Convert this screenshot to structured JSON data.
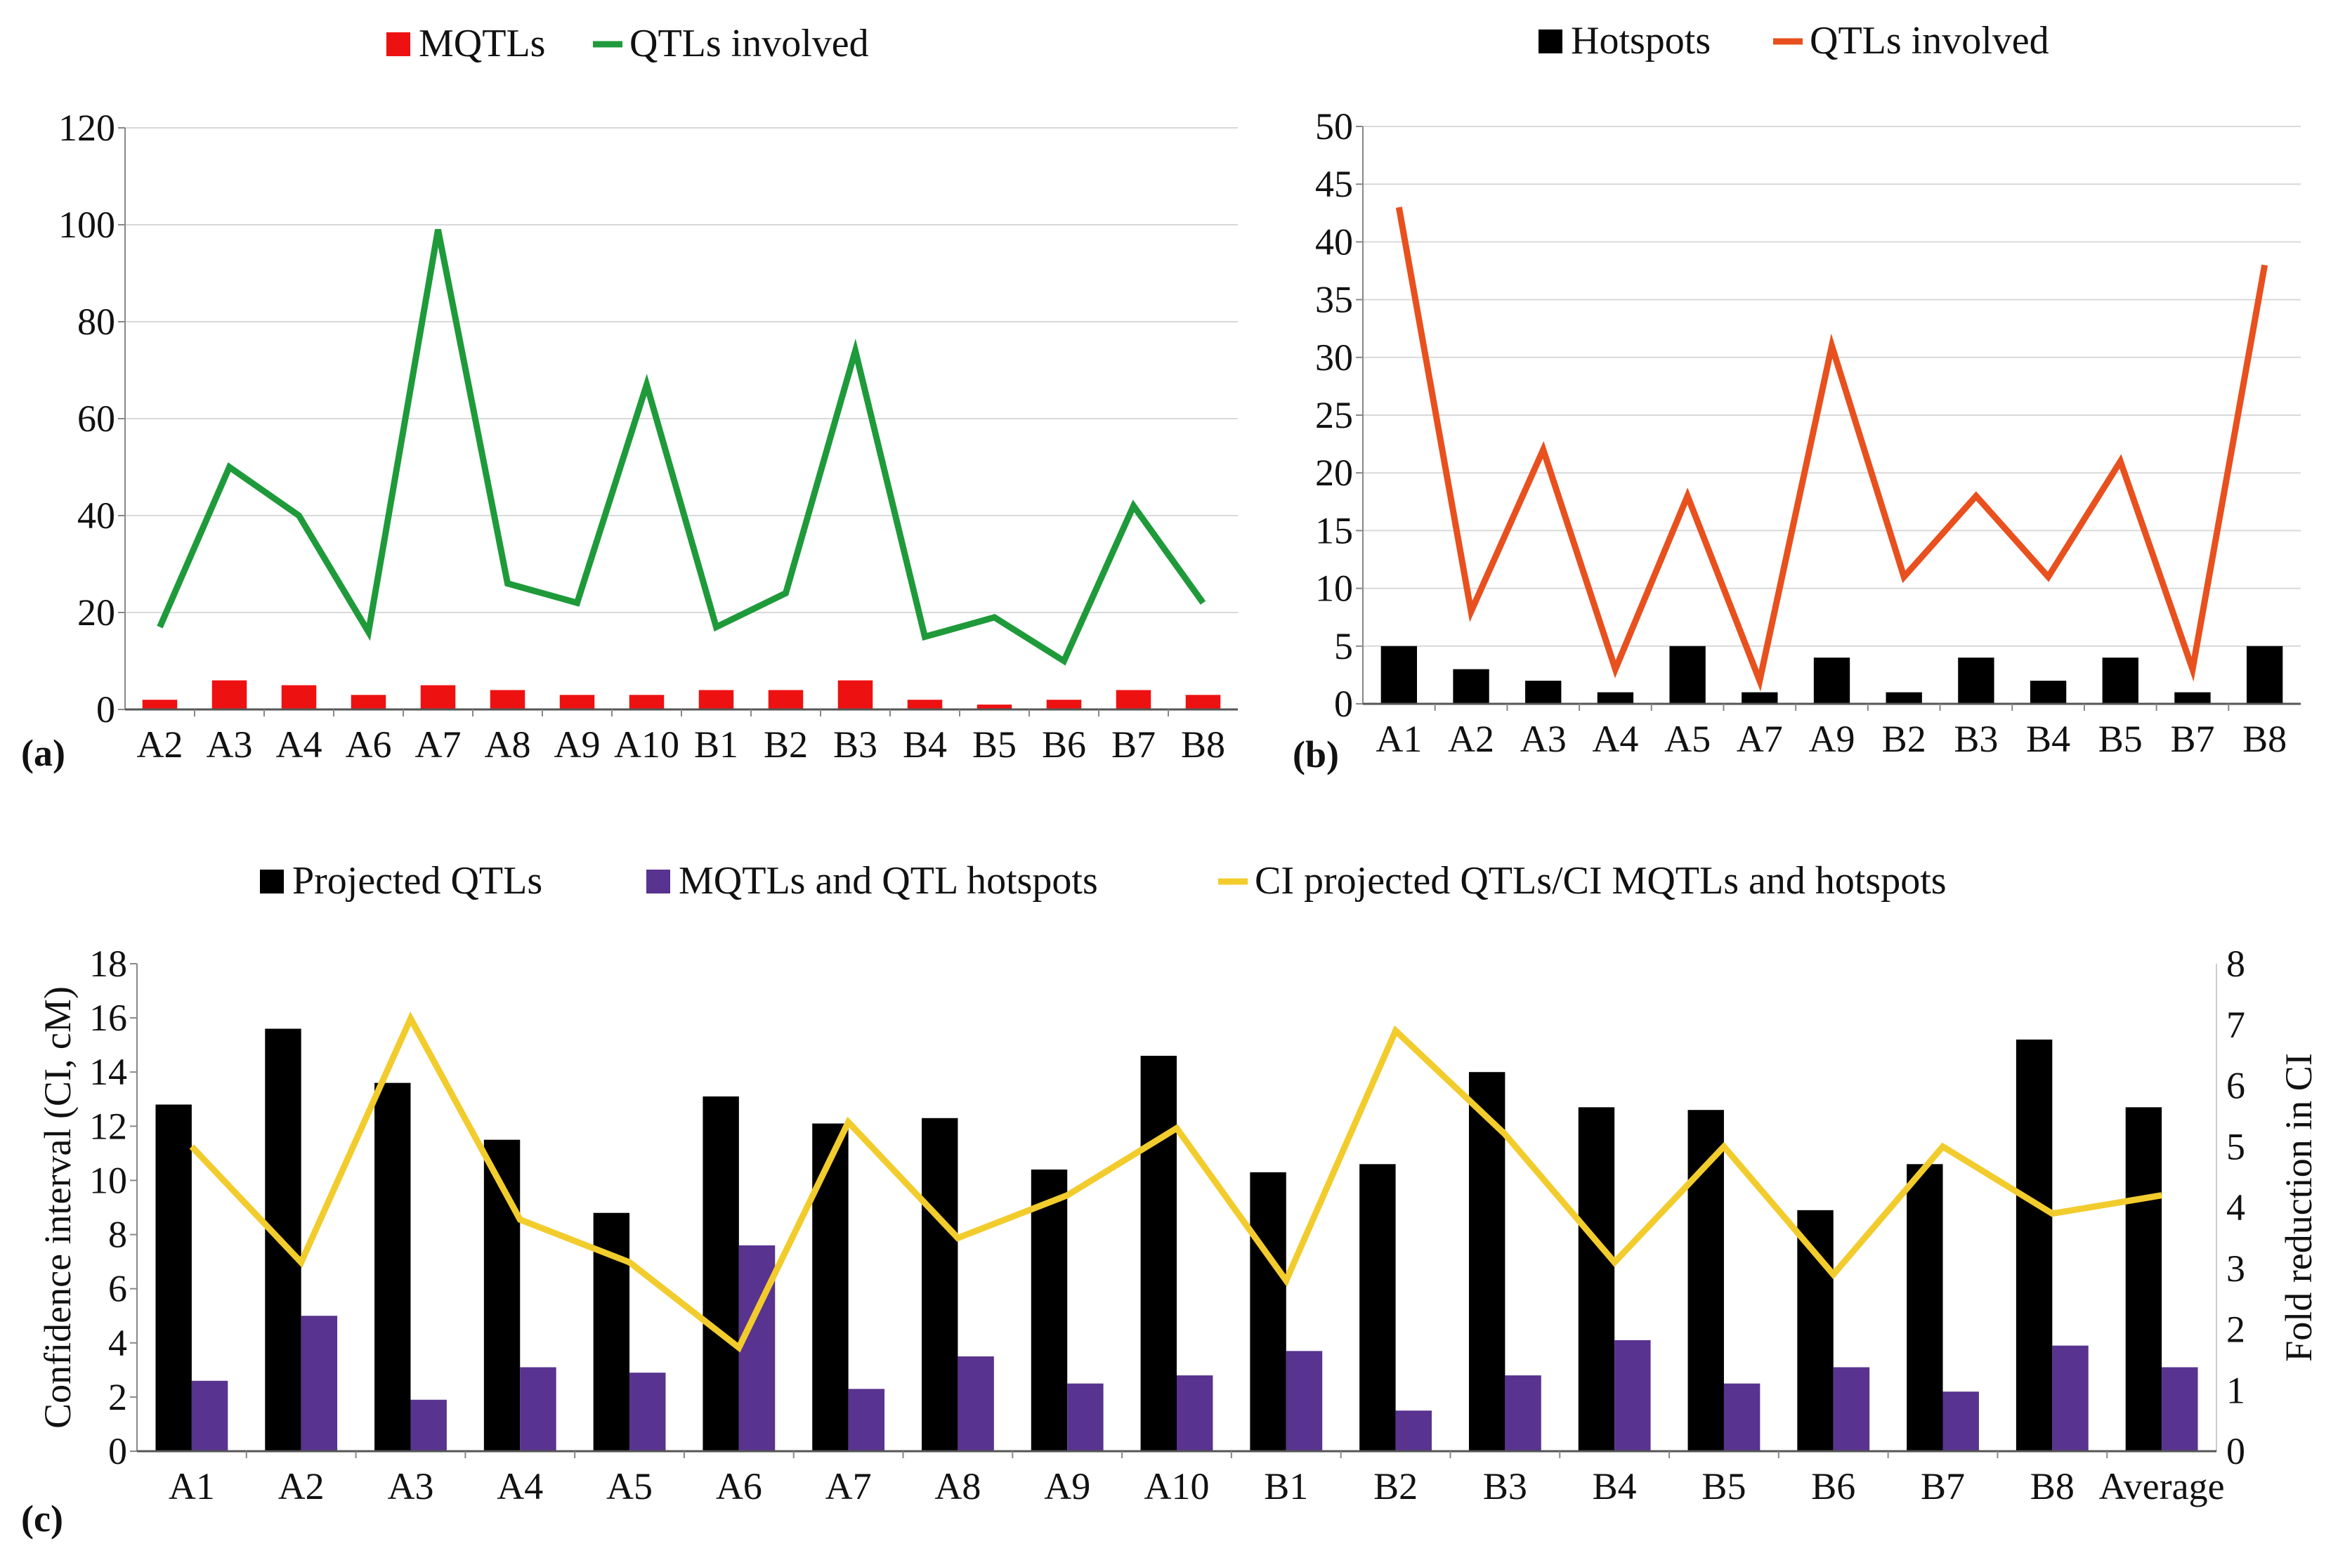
{
  "chart_data": [
    {
      "type": "bar+line",
      "panel_label": "(a)",
      "categories": [
        "A2",
        "A3",
        "A4",
        "A6",
        "A7",
        "A8",
        "A9",
        "A10",
        "B1",
        "B2",
        "B3",
        "B4",
        "B5",
        "B6",
        "B7",
        "B8"
      ],
      "series": [
        {
          "name": "MQTLs",
          "kind": "bar",
          "color": "#ee1111",
          "values": [
            2,
            6,
            5,
            3,
            5,
            4,
            3,
            3,
            4,
            4,
            6,
            2,
            1,
            2,
            4,
            3
          ]
        },
        {
          "name": "QTLs involved",
          "kind": "line",
          "color": "#1f9a3a",
          "values": [
            17,
            50,
            40,
            16,
            99,
            26,
            22,
            67,
            17,
            24,
            74,
            15,
            19,
            10,
            42,
            22
          ]
        }
      ],
      "ylim": [
        0,
        120
      ],
      "yticks": [
        0,
        20,
        40,
        60,
        80,
        100,
        120
      ],
      "legend": "top-center",
      "grid": true
    },
    {
      "type": "bar+line",
      "panel_label": "(b)",
      "categories": [
        "A1",
        "A2",
        "A3",
        "A4",
        "A5",
        "A7",
        "A9",
        "B2",
        "B3",
        "B4",
        "B5",
        "B7",
        "B8"
      ],
      "series": [
        {
          "name": "Hotspots",
          "kind": "bar",
          "color": "#000000",
          "values": [
            5,
            3,
            2,
            1,
            5,
            1,
            4,
            1,
            4,
            2,
            4,
            1,
            5
          ]
        },
        {
          "name": "QTLs involved",
          "kind": "line",
          "color": "#e8501e",
          "values": [
            43,
            8,
            22,
            3,
            18,
            2,
            31,
            11,
            18,
            11,
            21,
            3,
            38
          ]
        }
      ],
      "ylim": [
        0,
        50
      ],
      "yticks": [
        0,
        5,
        10,
        15,
        20,
        25,
        30,
        35,
        40,
        45,
        50
      ],
      "legend": "top-center",
      "grid": true
    },
    {
      "type": "bar+line",
      "panel_label": "(c)",
      "categories": [
        "A1",
        "A2",
        "A3",
        "A4",
        "A5",
        "A6",
        "A7",
        "A8",
        "A9",
        "A10",
        "B1",
        "B2",
        "B3",
        "B4",
        "B5",
        "B6",
        "B7",
        "B8",
        "Average"
      ],
      "series": [
        {
          "name": "Projected QTLs",
          "kind": "bar",
          "axis": "left",
          "color": "#000000",
          "values": [
            12.8,
            15.6,
            13.6,
            11.5,
            8.8,
            13.1,
            12.1,
            12.3,
            10.4,
            14.6,
            10.3,
            10.6,
            14.0,
            12.7,
            12.6,
            8.9,
            10.6,
            15.2,
            12.7
          ]
        },
        {
          "name": "MQTLs and QTL hotspots",
          "kind": "bar",
          "axis": "left",
          "color": "#58338f",
          "values": [
            2.6,
            5.0,
            1.9,
            3.1,
            2.9,
            7.6,
            2.3,
            3.5,
            2.5,
            2.8,
            3.7,
            1.5,
            2.8,
            4.1,
            2.5,
            3.1,
            2.2,
            3.9,
            3.1
          ]
        },
        {
          "name": "CI projected QTLs/CI MQTLs and hotspots",
          "kind": "line",
          "axis": "right",
          "color": "#f2cc2c",
          "values": [
            5.0,
            3.1,
            7.1,
            3.8,
            3.1,
            1.7,
            5.4,
            3.5,
            4.2,
            5.3,
            2.8,
            6.9,
            5.2,
            3.1,
            5.0,
            2.9,
            5.0,
            3.9,
            4.2
          ]
        }
      ],
      "ylabel": "Confidence interval (CI, cM)",
      "y2label": "Fold reduction in CI",
      "ylim": [
        0,
        18
      ],
      "yticks": [
        0,
        2,
        4,
        6,
        8,
        10,
        12,
        14,
        16,
        18
      ],
      "y2lim": [
        0,
        8
      ],
      "y2ticks": [
        0,
        1,
        2,
        3,
        4,
        5,
        6,
        7,
        8
      ],
      "legend": "top-center",
      "grid": false
    }
  ]
}
